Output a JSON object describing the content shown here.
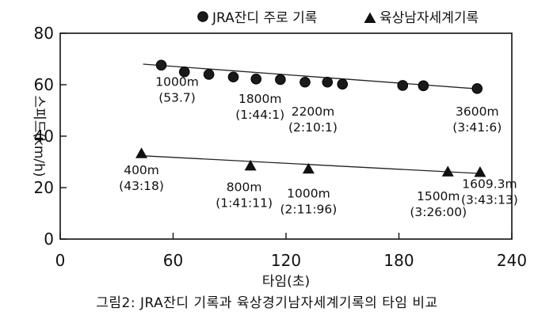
{
  "figure": {
    "caption": "그림2: JRA잔디 기록과 육상경기남자세계기록의 타임 비교"
  },
  "chart_data": {
    "type": "scatter",
    "title": "",
    "xlabel": "타임(초)",
    "ylabel": "스피드(km/h)",
    "xlim": [
      0,
      240
    ],
    "ylim": [
      0,
      80
    ],
    "xticks": [
      0,
      60,
      120,
      180,
      240
    ],
    "yticks": [
      0,
      20,
      40,
      60,
      80
    ],
    "grid": false,
    "legend_position": "top",
    "series": [
      {
        "name": "JRA잔디 주로 기록",
        "marker": "circle",
        "color": "#111111",
        "points": [
          {
            "x": 53.7,
            "y": 67.6
          },
          {
            "x": 66,
            "y": 65.0
          },
          {
            "x": 79,
            "y": 64.0
          },
          {
            "x": 92,
            "y": 63.0
          },
          {
            "x": 104.1,
            "y": 62.2
          },
          {
            "x": 117,
            "y": 62.0
          },
          {
            "x": 130.1,
            "y": 61.0
          },
          {
            "x": 142,
            "y": 61.0
          },
          {
            "x": 150,
            "y": 60.2
          },
          {
            "x": 182,
            "y": 59.7
          },
          {
            "x": 193,
            "y": 59.6
          },
          {
            "x": 221.6,
            "y": 58.5
          }
        ],
        "trend": [
          {
            "x": 44,
            "y": 68.0
          },
          {
            "x": 221.6,
            "y": 58.4
          }
        ],
        "labels": [
          {
            "x": 53.7,
            "y": 67.6,
            "line1": "1000m",
            "line2": "(53.7)"
          },
          {
            "x": 104.1,
            "y": 62.2,
            "line1": "1800m",
            "line2": "(1:44:1)"
          },
          {
            "x": 130.1,
            "y": 61.0,
            "line1": "2200m",
            "line2": "(2:10:1)"
          },
          {
            "x": 221.6,
            "y": 58.5,
            "line1": "3600m",
            "line2": "(3:41:6)"
          }
        ]
      },
      {
        "name": "육상남자세계기록",
        "marker": "triangle",
        "color": "#111111",
        "points": [
          {
            "x": 43.18,
            "y": 33.3
          },
          {
            "x": 101.11,
            "y": 28.5
          },
          {
            "x": 131.96,
            "y": 27.3
          },
          {
            "x": 206,
            "y": 26.2
          },
          {
            "x": 223.13,
            "y": 26.0
          }
        ],
        "trend": [
          {
            "x": 43.18,
            "y": 32.4
          },
          {
            "x": 223.13,
            "y": 25.5
          }
        ],
        "labels": [
          {
            "x": 43.18,
            "y": 33.3,
            "line1": "400m",
            "line2": "(43:18)"
          },
          {
            "x": 101.11,
            "y": 28.5,
            "line1": "800m",
            "line2": "(1:41:11)"
          },
          {
            "x": 131.96,
            "y": 27.3,
            "line1": "1000m",
            "line2": "(2:11:96)"
          },
          {
            "x": 206,
            "y": 26.2,
            "line1": "1500m",
            "line2": "(3:26:00)"
          },
          {
            "x": 223.13,
            "y": 26.0,
            "line1": "1609.3m",
            "line2": "(3:43:13)"
          }
        ]
      }
    ]
  }
}
